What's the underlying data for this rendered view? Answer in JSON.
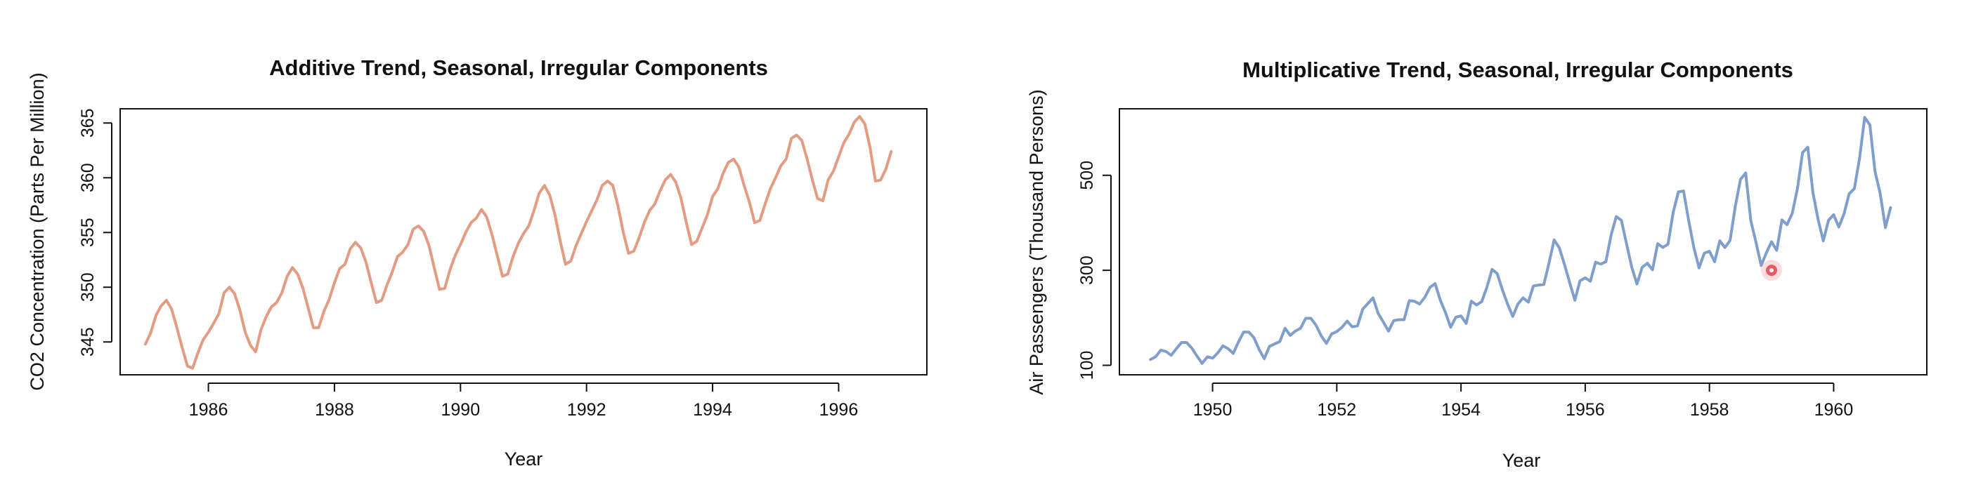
{
  "chart_data": [
    {
      "type": "line",
      "title": "Additive Trend, Seasonal, Irregular Components",
      "xlabel": "Year",
      "ylabel": "CO2 Concentration (Parts Per Million)",
      "xlim": [
        1984.6,
        1997.4
      ],
      "ylim": [
        342,
        366.3
      ],
      "x_ticks": [
        1986,
        1988,
        1990,
        1992,
        1994,
        1996
      ],
      "y_ticks": [
        345,
        350,
        355,
        360,
        365
      ],
      "grid": false,
      "color": "#E39C82",
      "series": [
        {
          "x_start": 1985.0,
          "x_step": 0.0833333,
          "values": [
            344.8,
            345.8,
            347.4,
            348.3,
            348.8,
            348.0,
            346.3,
            344.5,
            342.8,
            342.6,
            344.0,
            345.2,
            345.9,
            346.7,
            347.6,
            349.5,
            350.0,
            349.4,
            347.9,
            345.9,
            344.7,
            344.1,
            346.1,
            347.3,
            348.2,
            348.6,
            349.5,
            351.0,
            351.8,
            351.2,
            349.9,
            348.1,
            346.3,
            346.3,
            347.8,
            348.9,
            350.4,
            351.7,
            352.1,
            353.5,
            354.1,
            353.6,
            352.3,
            350.4,
            348.6,
            348.8,
            350.2,
            351.4,
            352.8,
            353.2,
            353.9,
            355.3,
            355.6,
            355.1,
            353.8,
            351.8,
            349.8,
            349.9,
            351.6,
            352.9,
            353.9,
            355.0,
            355.9,
            356.3,
            357.1,
            356.4,
            354.8,
            352.9,
            351.0,
            351.2,
            352.8,
            354.0,
            354.9,
            355.6,
            357.0,
            358.6,
            359.3,
            358.4,
            356.6,
            354.2,
            352.1,
            352.4,
            353.8,
            354.9,
            356.0,
            357.0,
            358.0,
            359.3,
            359.7,
            359.3,
            357.4,
            355.0,
            353.1,
            353.3,
            354.5,
            355.9,
            357.0,
            357.6,
            358.8,
            359.8,
            360.3,
            359.6,
            358.1,
            355.9,
            353.9,
            354.2,
            355.4,
            356.6,
            358.3,
            359.0,
            360.4,
            361.4,
            361.7,
            361.0,
            359.3,
            357.8,
            355.9,
            356.1,
            357.6,
            359.0,
            360.0,
            361.1,
            361.7,
            363.6,
            363.9,
            363.4,
            361.7,
            359.8,
            358.1,
            357.9,
            359.8,
            360.6,
            361.9,
            363.2,
            364.0,
            365.1,
            365.6,
            364.9,
            362.7,
            359.7,
            359.8,
            360.8,
            362.4
          ]
        }
      ]
    },
    {
      "type": "line",
      "title": "Multiplicative Trend, Seasonal, Irregular Components",
      "xlabel": "Year",
      "ylabel": "Air Passengers (Thousand Persons)",
      "xlim": [
        1948.5,
        1961.5
      ],
      "ylim": [
        80,
        640
      ],
      "x_ticks": [
        1950,
        1952,
        1954,
        1956,
        1958,
        1960
      ],
      "y_ticks": [
        100,
        300,
        500
      ],
      "grid": false,
      "color": "#7F9ECB",
      "marker_color": "#E8434B",
      "marker": {
        "x": 1959.0,
        "y": 300
      },
      "series": [
        {
          "x_start": 1949.0,
          "x_step": 0.0833333,
          "values": [
            112,
            118,
            132,
            129,
            121,
            135,
            148,
            148,
            136,
            119,
            104,
            118,
            115,
            126,
            141,
            135,
            125,
            149,
            170,
            170,
            158,
            133,
            114,
            140,
            145,
            150,
            178,
            163,
            172,
            178,
            199,
            199,
            184,
            162,
            146,
            166,
            171,
            180,
            193,
            181,
            183,
            218,
            230,
            242,
            209,
            191,
            172,
            194,
            196,
            196,
            236,
            235,
            229,
            243,
            264,
            272,
            237,
            211,
            180,
            201,
            204,
            188,
            235,
            227,
            234,
            264,
            302,
            293,
            259,
            229,
            203,
            229,
            242,
            233,
            267,
            269,
            270,
            315,
            364,
            347,
            312,
            274,
            237,
            278,
            284,
            277,
            317,
            313,
            318,
            374,
            413,
            405,
            355,
            306,
            271,
            306,
            315,
            301,
            356,
            348,
            355,
            422,
            465,
            467,
            404,
            347,
            305,
            336,
            340,
            318,
            362,
            348,
            363,
            435,
            491,
            505,
            404,
            359,
            310,
            337,
            360,
            342,
            406,
            396,
            420,
            472,
            548,
            559,
            463,
            407,
            362,
            405,
            417,
            391,
            419,
            461,
            472,
            535,
            622,
            606,
            508,
            461,
            390,
            432
          ]
        }
      ]
    }
  ]
}
